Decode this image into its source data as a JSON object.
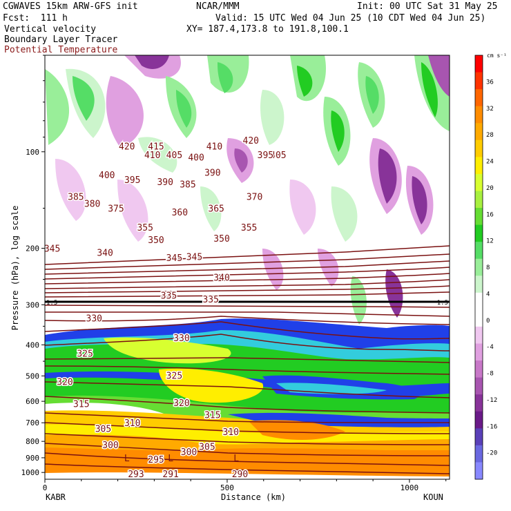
{
  "header": {
    "model": "CGWAVES 15km ARW-GFS init",
    "org": "NCAR/MMM",
    "init": "Init: 00 UTC Sat 31 May 25",
    "fcst": "Fcst:  111 h",
    "valid": "Valid: 15 UTC Wed 04 Jun 25 (10 CDT Wed 04 Jun 25)",
    "xy": "XY= 187.4,173.8 to 191.8,100.1",
    "field1": "Vertical velocity",
    "field2": "Boundary Layer Tracer",
    "field3": "Potential Temperature"
  },
  "colors": {
    "theta": "#7a1010",
    "field3_text": "#8b1a1a"
  },
  "chart_data": {
    "type": "heatmap",
    "title": "Vertical velocity",
    "xlabel": "Distance (km)",
    "ylabel": "Pressure (hPa), log scale",
    "x_ticks": [
      {
        "value": 0,
        "label": "0"
      },
      {
        "value": 500,
        "label": "500"
      },
      {
        "value": 1000,
        "label": "1000"
      }
    ],
    "xlim": [
      0,
      1110
    ],
    "left_station": "KABR",
    "right_station": "KOUN",
    "y_scale": "log",
    "ylim": [
      1050,
      50
    ],
    "y_ticks": [
      {
        "value": 100,
        "label": "100"
      },
      {
        "value": 200,
        "label": "200"
      },
      {
        "value": 300,
        "label": "300"
      },
      {
        "value": 400,
        "label": "400"
      },
      {
        "value": 500,
        "label": "500"
      },
      {
        "value": 600,
        "label": "600"
      },
      {
        "value": 700,
        "label": "700"
      },
      {
        "value": 800,
        "label": "800"
      },
      {
        "value": 900,
        "label": "900"
      },
      {
        "value": 1000,
        "label": "1000"
      }
    ],
    "colorbar": {
      "unit": "cm s⁻¹",
      "ticks": [
        {
          "value": 36,
          "label": "36"
        },
        {
          "value": 32,
          "label": "32"
        },
        {
          "value": 28,
          "label": "28"
        },
        {
          "value": 24,
          "label": "24"
        },
        {
          "value": 20,
          "label": "20"
        },
        {
          "value": 16,
          "label": "16"
        },
        {
          "value": 12,
          "label": "12"
        },
        {
          "value": 8,
          "label": "8"
        },
        {
          "value": 4,
          "label": "4"
        },
        {
          "value": 0,
          "label": "0"
        },
        {
          "value": -4,
          "label": "-4"
        },
        {
          "value": -8,
          "label": "-8"
        },
        {
          "value": -12,
          "label": "-12"
        },
        {
          "value": -16,
          "label": "-16"
        },
        {
          "value": -20,
          "label": "-20"
        }
      ],
      "colors": [
        "#ff0000",
        "#ff3300",
        "#ff6600",
        "#ff8c00",
        "#ffaa00",
        "#ffcc00",
        "#ffee00",
        "#d8ff30",
        "#a8f040",
        "#66dd33",
        "#22cc22",
        "#55dd66",
        "#99ee99",
        "#ccf5cc",
        "#ffffff",
        "#ffffff",
        "#f0c8f0",
        "#e0a0e0",
        "#c878c8",
        "#a855b0",
        "#883399",
        "#6a1a88",
        "#5a40b8",
        "#6a68e0",
        "#8888ff"
      ]
    },
    "pv_label": "1.5",
    "theta_labels": [
      {
        "x": 565,
        "p": 92,
        "text": "420"
      },
      {
        "x": 225,
        "p": 96,
        "text": "420"
      },
      {
        "x": 305,
        "p": 96,
        "text": "415"
      },
      {
        "x": 295,
        "p": 102,
        "text": "410"
      },
      {
        "x": 465,
        "p": 96,
        "text": "410"
      },
      {
        "x": 355,
        "p": 102,
        "text": "405"
      },
      {
        "x": 640,
        "p": 102,
        "text": "405"
      },
      {
        "x": 415,
        "p": 104,
        "text": "400"
      },
      {
        "x": 170,
        "p": 118,
        "text": "400"
      },
      {
        "x": 605,
        "p": 102,
        "text": "395"
      },
      {
        "x": 240,
        "p": 122,
        "text": "395"
      },
      {
        "x": 330,
        "p": 124,
        "text": "390"
      },
      {
        "x": 460,
        "p": 116,
        "text": "390"
      },
      {
        "x": 85,
        "p": 138,
        "text": "385"
      },
      {
        "x": 392,
        "p": 126,
        "text": "385"
      },
      {
        "x": 130,
        "p": 145,
        "text": "380"
      },
      {
        "x": 195,
        "p": 150,
        "text": "375"
      },
      {
        "x": 575,
        "p": 138,
        "text": "370"
      },
      {
        "x": 470,
        "p": 150,
        "text": "365"
      },
      {
        "x": 370,
        "p": 154,
        "text": "360"
      },
      {
        "x": 275,
        "p": 172,
        "text": "355"
      },
      {
        "x": 560,
        "p": 172,
        "text": "355"
      },
      {
        "x": 305,
        "p": 188,
        "text": "350"
      },
      {
        "x": 485,
        "p": 186,
        "text": "350"
      },
      {
        "x": 20,
        "p": 200,
        "text": "345"
      },
      {
        "x": 355,
        "p": 214,
        "text": "345"
      },
      {
        "x": 410,
        "p": 212,
        "text": "345"
      },
      {
        "x": 165,
        "p": 206,
        "text": "340"
      },
      {
        "x": 485,
        "p": 246,
        "text": "340"
      },
      {
        "x": 340,
        "p": 280,
        "text": "335"
      },
      {
        "x": 455,
        "p": 288,
        "text": "335"
      },
      {
        "x": 135,
        "p": 330,
        "text": "330"
      },
      {
        "x": 375,
        "p": 380,
        "text": "330"
      },
      {
        "x": 110,
        "p": 425,
        "text": "325"
      },
      {
        "x": 355,
        "p": 498,
        "text": "325"
      },
      {
        "x": 55,
        "p": 520,
        "text": "320"
      },
      {
        "x": 375,
        "p": 605,
        "text": "320"
      },
      {
        "x": 100,
        "p": 610,
        "text": "315"
      },
      {
        "x": 460,
        "p": 660,
        "text": "315"
      },
      {
        "x": 240,
        "p": 700,
        "text": "310"
      },
      {
        "x": 510,
        "p": 745,
        "text": "310"
      },
      {
        "x": 160,
        "p": 730,
        "text": "305"
      },
      {
        "x": 445,
        "p": 830,
        "text": "305"
      },
      {
        "x": 180,
        "p": 820,
        "text": "300"
      },
      {
        "x": 395,
        "p": 862,
        "text": "300"
      },
      {
        "x": 305,
        "p": 910,
        "text": "295"
      },
      {
        "x": 250,
        "p": 1008,
        "text": "293"
      },
      {
        "x": 345,
        "p": 1008,
        "text": "291"
      },
      {
        "x": 535,
        "p": 1008,
        "text": "290"
      }
    ],
    "low_markers": [
      {
        "x": 225,
        "p": 900,
        "text": "L"
      },
      {
        "x": 345,
        "p": 900,
        "text": "L"
      },
      {
        "x": 525,
        "p": 900,
        "text": "L"
      }
    ]
  }
}
